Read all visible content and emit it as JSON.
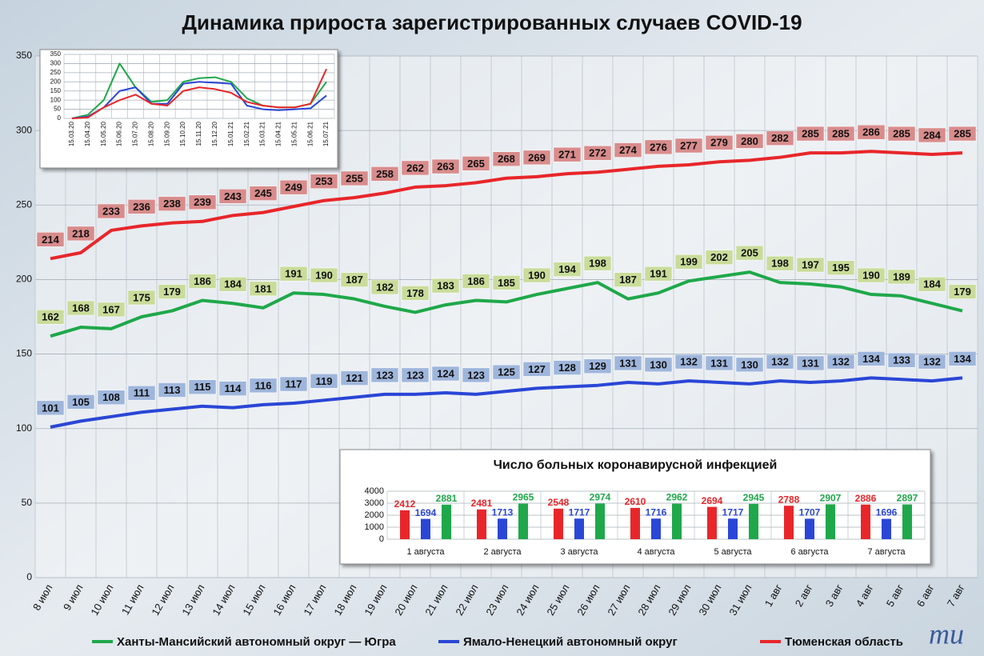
{
  "chart_data": [
    {
      "type": "line",
      "title": "Динамика прироста зарегистрированных случаев COVID-19",
      "categories": [
        "8 июл",
        "9 июл",
        "10 июл",
        "11 июл",
        "12 июл",
        "13 июл",
        "14 июл",
        "15 июл",
        "16 июл",
        "17 июл",
        "18 июл",
        "19 июл",
        "20 июл",
        "21 июл",
        "22 июл",
        "23 июл",
        "24 июл",
        "25 июл",
        "26 июл",
        "27 июл",
        "28 июл",
        "29 июл",
        "30 июл",
        "31 июл",
        "1 авг",
        "2 авг",
        "3 авг",
        "4 авг",
        "5 авг",
        "6 авг",
        "7 авг"
      ],
      "series": [
        {
          "name": "Ханты-Мансийский автономный округ — Югра",
          "color": "#1fa84a",
          "label_color": "#c9dc9a",
          "values": [
            162,
            168,
            167,
            175,
            179,
            186,
            184,
            181,
            191,
            190,
            187,
            182,
            178,
            183,
            186,
            185,
            190,
            194,
            198,
            187,
            191,
            199,
            202,
            205,
            198,
            197,
            195,
            190,
            189,
            184,
            179
          ]
        },
        {
          "name": "Ямало-Ненецкий автономный округ",
          "color": "#2a46d6",
          "label_color": "#9fb6dc",
          "values": [
            101,
            105,
            108,
            111,
            113,
            115,
            114,
            116,
            117,
            119,
            121,
            123,
            123,
            124,
            123,
            125,
            127,
            128,
            129,
            131,
            130,
            132,
            131,
            130,
            132,
            131,
            132,
            134,
            133,
            132,
            134
          ]
        },
        {
          "name": "Тюменская область",
          "color": "#e8262a",
          "label_color": "#d98c8c",
          "values": [
            214,
            218,
            233,
            236,
            238,
            239,
            243,
            245,
            249,
            253,
            255,
            258,
            262,
            263,
            265,
            268,
            269,
            271,
            272,
            274,
            276,
            277,
            279,
            280,
            282,
            285,
            285,
            286,
            285,
            284,
            285
          ]
        }
      ],
      "ylim": [
        0,
        350
      ],
      "yticks": [
        0,
        50,
        100,
        150,
        200,
        250,
        300,
        350
      ],
      "grid": true
    },
    {
      "type": "line",
      "categories": [
        "15.03.20",
        "15.04.20",
        "15.05.20",
        "15.06.20",
        "15.07.20",
        "15.08.20",
        "15.09.20",
        "15.10.20",
        "15.11.20",
        "15.12.20",
        "15.01.21",
        "15.02.21",
        "15.03.21",
        "15.04.21",
        "15.05.21",
        "15.06.21",
        "15.07.21"
      ],
      "series": [
        {
          "color": "#1fa84a",
          "values": [
            0,
            20,
            100,
            300,
            170,
            90,
            100,
            200,
            220,
            225,
            200,
            110,
            70,
            60,
            60,
            80,
            200
          ]
        },
        {
          "color": "#2a46d6",
          "values": [
            0,
            10,
            60,
            150,
            170,
            80,
            80,
            190,
            200,
            195,
            190,
            70,
            50,
            45,
            50,
            55,
            125
          ]
        },
        {
          "color": "#e8262a",
          "values": [
            0,
            5,
            60,
            100,
            130,
            80,
            70,
            150,
            170,
            160,
            140,
            90,
            70,
            60,
            60,
            80,
            270
          ]
        }
      ],
      "ylim": [
        0,
        350
      ],
      "yticks": [
        0,
        50,
        100,
        150,
        200,
        250,
        300,
        350
      ],
      "grid": true
    },
    {
      "type": "bar",
      "title": "Число больных коронавирусной инфекцией",
      "categories": [
        "1 августа",
        "2 августа",
        "3 августа",
        "4 августа",
        "5 августа",
        "6 августа",
        "7 августа"
      ],
      "series": [
        {
          "color": "#e8262a",
          "values": [
            2412,
            2481,
            2548,
            2610,
            2694,
            2788,
            2886
          ]
        },
        {
          "color": "#2a46d6",
          "values": [
            1694,
            1713,
            1717,
            1716,
            1717,
            1707,
            1696
          ]
        },
        {
          "color": "#1fa84a",
          "values": [
            2881,
            2965,
            2974,
            2962,
            2945,
            2907,
            2897
          ]
        }
      ],
      "ylim": [
        0,
        4000
      ],
      "yticks": [
        0,
        1000,
        2000,
        3000,
        4000
      ],
      "grid": true
    }
  ],
  "logo": "mu"
}
